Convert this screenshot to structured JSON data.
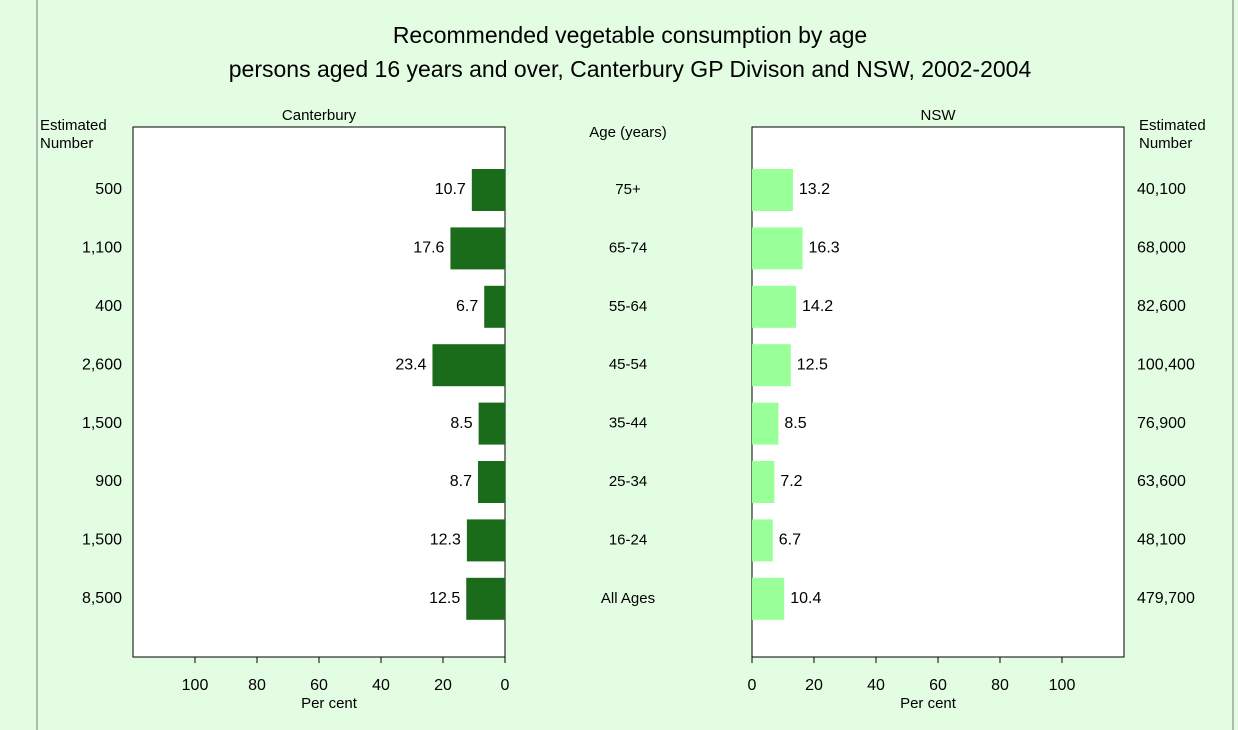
{
  "chart_data": {
    "type": "bar",
    "orientation": "horizontal",
    "title": "Recommended vegetable consumption by age",
    "subtitle": "persons aged 16 years and over, Canterbury GP Divison and NSW, 2002-2004",
    "category_label": "Age (years)",
    "xlabel": "Per cent",
    "number_label": "Estimated Number",
    "categories": [
      "75+",
      "65-74",
      "55-64",
      "45-54",
      "35-44",
      "25-34",
      "16-24",
      "All Ages"
    ],
    "xlim": [
      0,
      120
    ],
    "xticks": [
      0,
      20,
      40,
      60,
      80,
      100
    ],
    "series": [
      {
        "name": "Canterbury",
        "color": "#1a6b1a",
        "values": [
          10.7,
          17.6,
          6.7,
          23.4,
          8.5,
          8.7,
          12.3,
          12.5
        ],
        "estimated_number": [
          "500",
          "1,100",
          "400",
          "2,600",
          "1,500",
          "900",
          "1,500",
          "8,500"
        ]
      },
      {
        "name": "NSW",
        "color": "#99ff99",
        "values": [
          13.2,
          16.3,
          14.2,
          12.5,
          8.5,
          7.2,
          6.7,
          10.4
        ],
        "estimated_number": [
          "40,100",
          "68,000",
          "82,600",
          "100,400",
          "76,900",
          "63,600",
          "48,100",
          "479,700"
        ]
      }
    ]
  }
}
